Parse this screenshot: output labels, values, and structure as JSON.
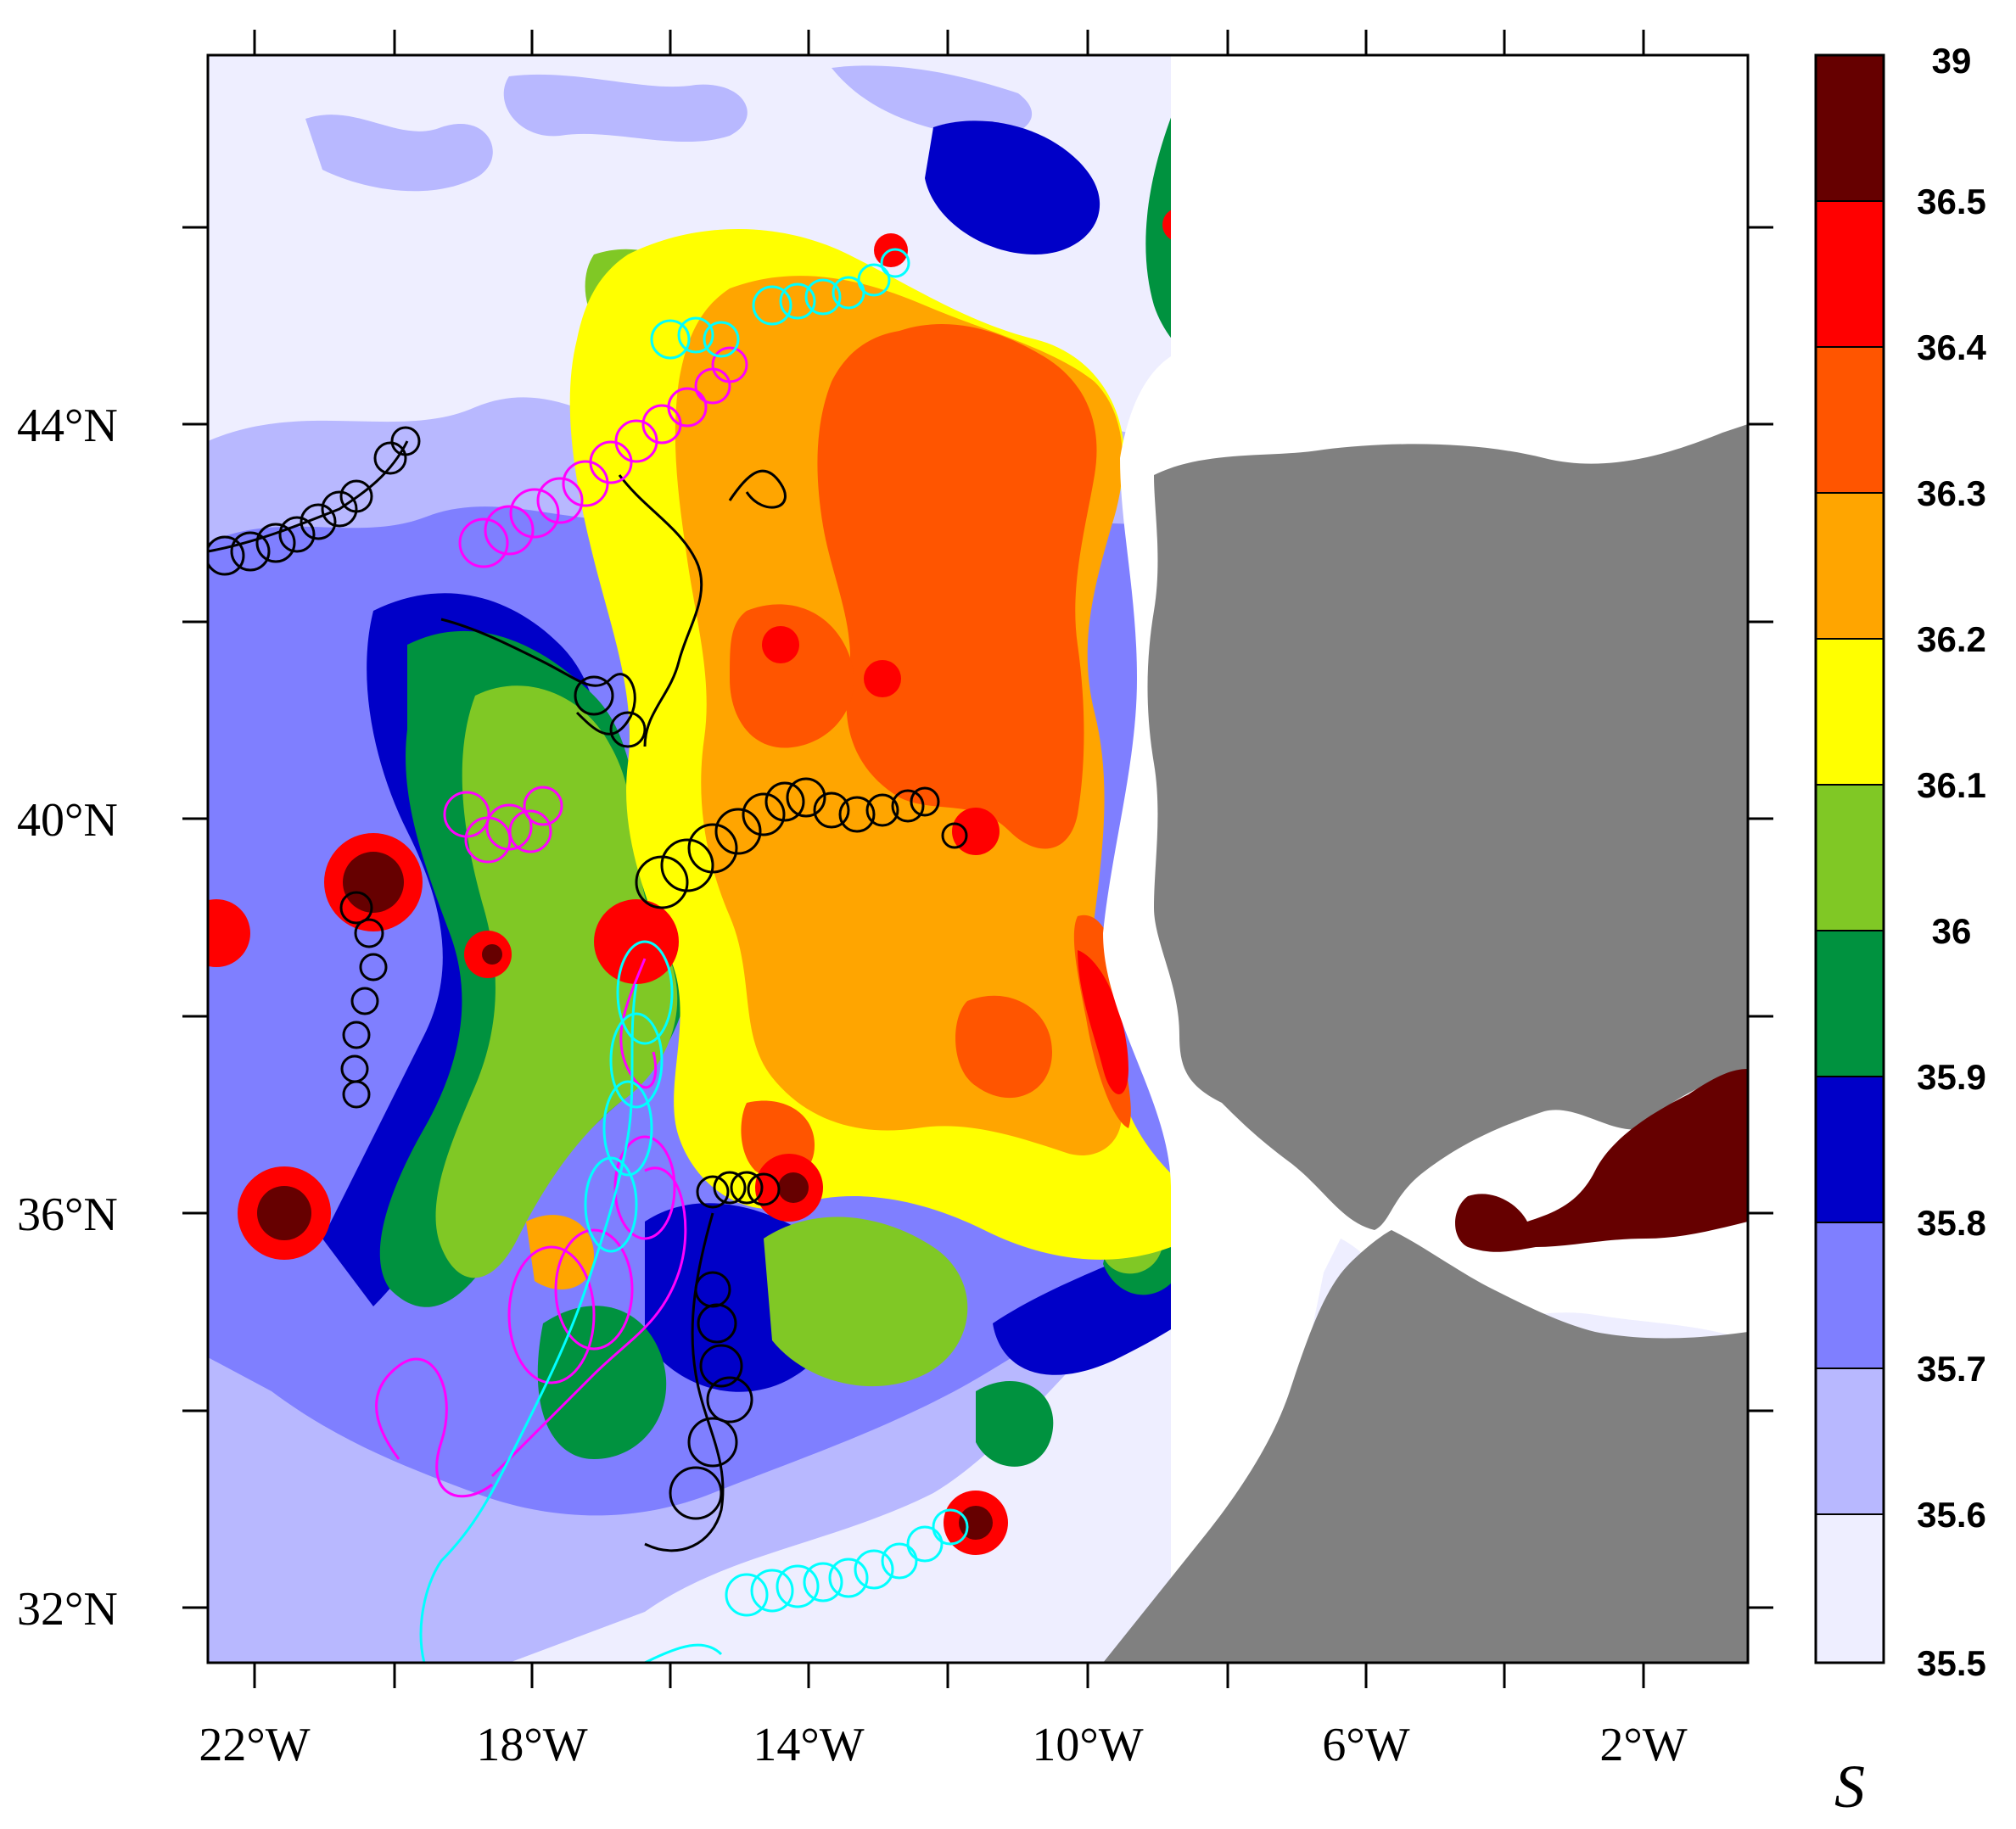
{
  "map": {
    "lat_labels": [
      "44°N",
      "40°N",
      "36°N",
      "32°N"
    ],
    "lon_labels": [
      "22°W",
      "18°W",
      "14°W",
      "10°W",
      "6°W",
      "2°W"
    ],
    "land_color": "#808080",
    "coastal_gap_color": "#ffffff"
  },
  "colorbar": {
    "title": "S",
    "levels": [
      "39",
      "36.5",
      "36.4",
      "36.3",
      "36.2",
      "36.1",
      "36",
      "35.9",
      "35.8",
      "35.7",
      "35.6",
      "35.5"
    ],
    "colors_top_to_bottom": [
      "#660000",
      "#ff0000",
      "#ff5500",
      "#ffa500",
      "#ffff00",
      "#80c825",
      "#00923f",
      "#0000c8",
      "#7f7fff",
      "#b8b8ff",
      "#eeeeff"
    ]
  },
  "trajectories": [
    {
      "color": "#000000",
      "name": "black"
    },
    {
      "color": "#ff00ff",
      "name": "magenta"
    },
    {
      "color": "#00ffff",
      "name": "cyan"
    }
  ]
}
